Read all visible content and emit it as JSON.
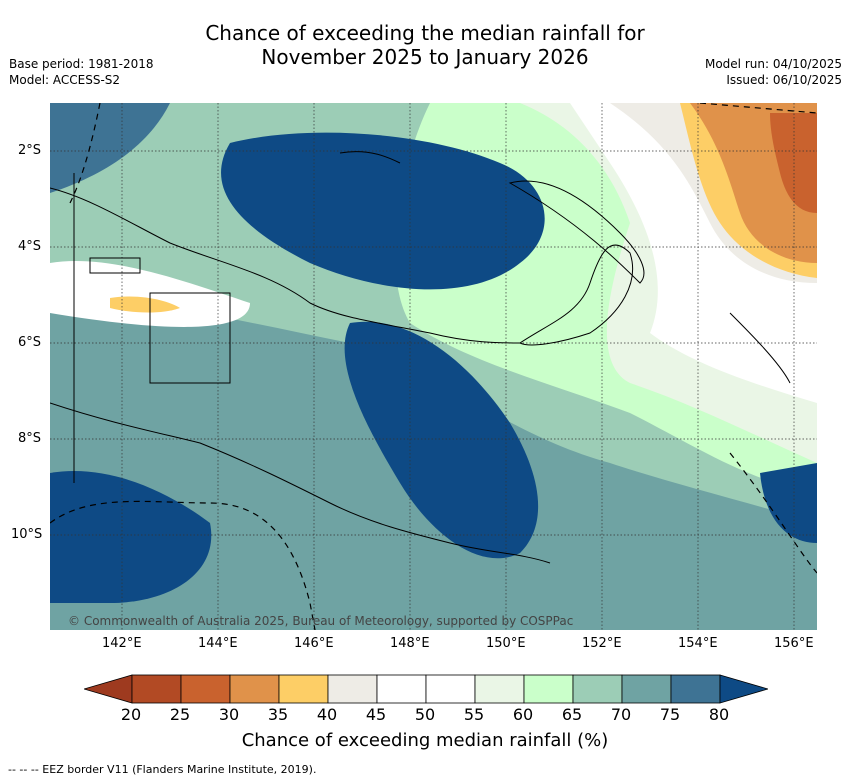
{
  "title_line1": "Chance of exceeding the median rainfall for",
  "title_line2": "November 2025 to January 2026",
  "base_period": "Base period: 1981-2018",
  "model": "Model: ACCESS-S2",
  "model_run": "Model run: 04/10/2025",
  "issued": "Issued: 06/10/2025",
  "copyright": "© Commonwealth of Australia 2025, Bureau of Meteorology, supported by COSPPac",
  "lat_labels": [
    "2°S",
    "4°S",
    "6°S",
    "8°S",
    "10°S"
  ],
  "lon_labels": [
    "142°E",
    "144°E",
    "146°E",
    "148°E",
    "150°E",
    "152°E",
    "154°E",
    "156°E"
  ],
  "colorbar": {
    "ticks": [
      "20",
      "25",
      "30",
      "35",
      "40",
      "45",
      "50",
      "55",
      "60",
      "65",
      "70",
      "75",
      "80"
    ],
    "colors": [
      "#9e3a1f",
      "#b24a24",
      "#c9622e",
      "#e0924a",
      "#fdce66",
      "#eeece6",
      "#ffffff",
      "#ffffff",
      "#eaf6e6",
      "#caffca",
      "#9ccdb6",
      "#6fa3a3",
      "#3e7394",
      "#0e4a85"
    ],
    "title": "Chance of exceeding median rainfall (%)"
  },
  "footnote": "--  --  -- EEZ border V11 (Flanders Marine Institute, 2019)."
}
